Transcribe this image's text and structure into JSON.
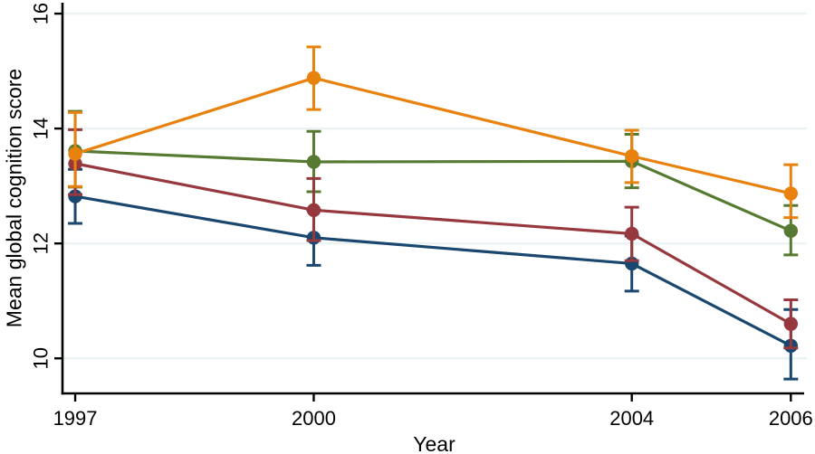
{
  "figure": {
    "background": "#ffffff"
  },
  "chart_data": {
    "type": "line",
    "title": "",
    "xlabel": "Year",
    "ylabel": "Mean global cognition score",
    "x": [
      1997,
      2000,
      2004,
      2006
    ],
    "x_tick_labels": [
      "1997",
      "2000",
      "2004",
      "2006"
    ],
    "y_ticks": [
      10,
      12,
      14,
      16
    ],
    "y_tick_labels": [
      "10",
      "12",
      "14",
      "16"
    ],
    "xlim": [
      1996.84,
      2006.19
    ],
    "ylim": [
      9.39,
      16.19
    ],
    "grid": "horizontal",
    "legend": "none",
    "error_bars": true,
    "axis_color": "#000000",
    "grid_color": "#EAF2F3",
    "series": [
      {
        "name": "navy-series",
        "color": "#1A476F",
        "values": [
          12.82,
          12.1,
          11.65,
          10.22
        ],
        "ci_low": [
          12.35,
          11.62,
          11.17,
          9.64
        ],
        "ci_high": [
          13.29,
          12.58,
          12.13,
          10.85
        ]
      },
      {
        "name": "green-series",
        "color": "#567A31",
        "values": [
          13.61,
          13.42,
          13.43,
          12.22
        ],
        "ci_low": [
          12.98,
          12.9,
          12.97,
          11.8
        ],
        "ci_high": [
          14.3,
          13.95,
          13.9,
          12.66
        ]
      },
      {
        "name": "maroon-series",
        "color": "#96383D",
        "values": [
          13.39,
          12.58,
          12.17,
          10.6
        ],
        "ci_low": [
          12.85,
          12.05,
          11.7,
          10.18
        ],
        "ci_high": [
          13.98,
          13.13,
          12.63,
          11.02
        ]
      },
      {
        "name": "orange-series",
        "color": "#E8820D",
        "values": [
          13.56,
          14.88,
          13.52,
          12.87
        ],
        "ci_low": [
          12.99,
          14.33,
          13.06,
          12.45
        ],
        "ci_high": [
          14.28,
          15.42,
          13.97,
          13.37
        ]
      }
    ]
  }
}
